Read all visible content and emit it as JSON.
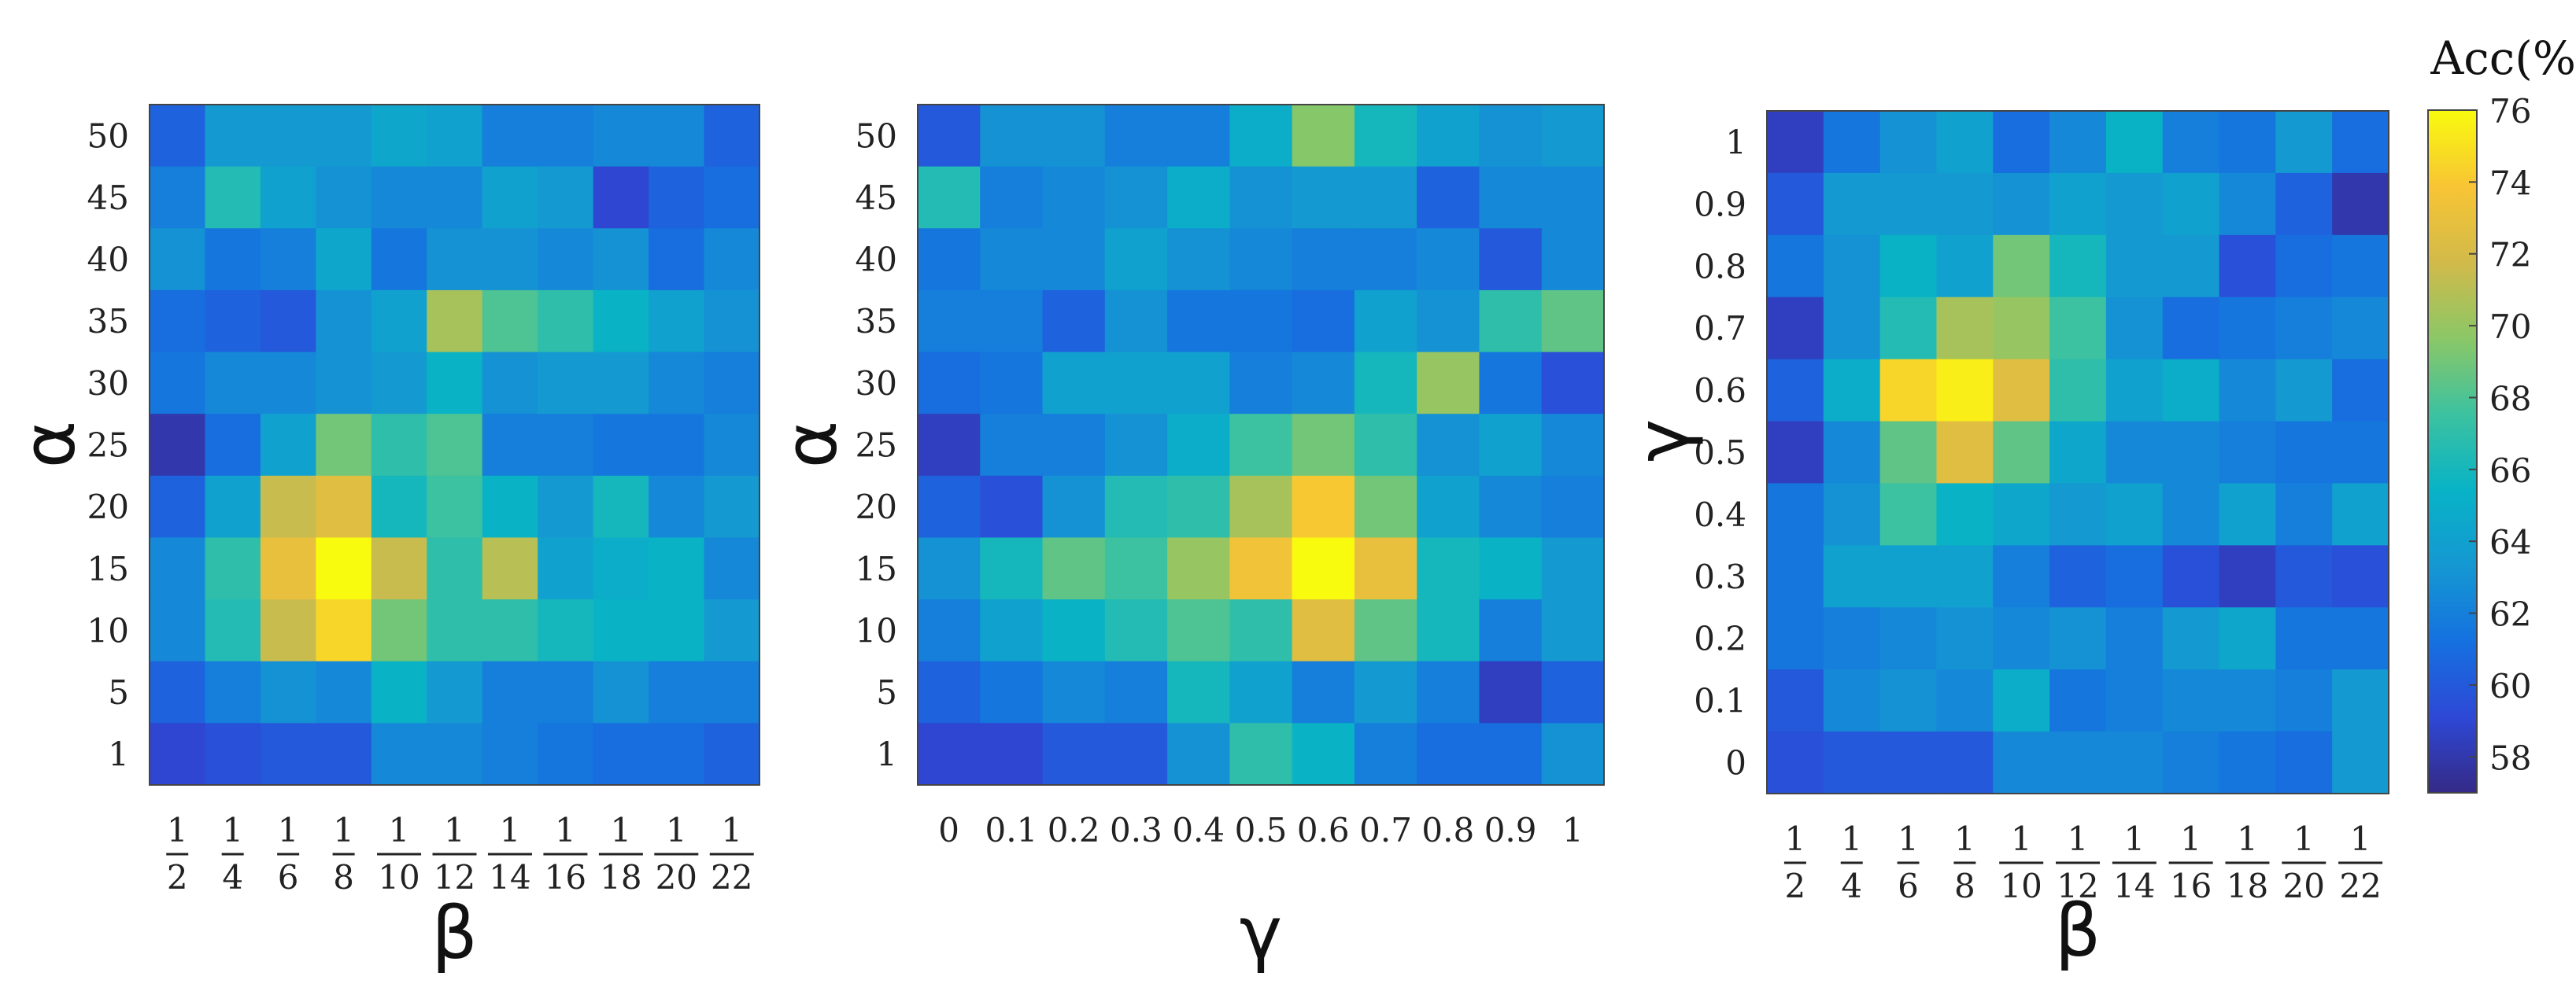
{
  "colorbar": {
    "title": "Acc(%)",
    "min": 57,
    "max": 76,
    "ticks": [
      "58",
      "60",
      "62",
      "64",
      "66",
      "68",
      "70",
      "72",
      "74",
      "76"
    ],
    "colormap": "parula",
    "stops": [
      "#352A87",
      "#2E48D6",
      "#1571E0",
      "#1598D2",
      "#08B3C6",
      "#3DC29F",
      "#8CC766",
      "#D2BA4A",
      "#F8C534",
      "#F9FB0E"
    ]
  },
  "chart_data": [
    {
      "type": "heatmap",
      "xlabel": "β",
      "ylabel": "α",
      "x_numerators": [
        "1",
        "1",
        "1",
        "1",
        "1",
        "1",
        "1",
        "1",
        "1",
        "1",
        "1"
      ],
      "x_denominators": [
        "2",
        "4",
        "6",
        "8",
        "10",
        "12",
        "14",
        "16",
        "18",
        "20",
        "22"
      ],
      "y_ticks": [
        "50",
        "45",
        "40",
        "35",
        "30",
        "25",
        "20",
        "15",
        "10",
        "5",
        "1"
      ],
      "values": [
        [
          60.5,
          63.5,
          63.5,
          63.5,
          64.5,
          64.0,
          62.0,
          62.0,
          62.5,
          62.5,
          60.5
        ],
        [
          62.0,
          66.5,
          64.0,
          63.0,
          62.5,
          62.5,
          64.0,
          63.5,
          59.0,
          60.5,
          61.0
        ],
        [
          63.0,
          61.5,
          62.0,
          64.5,
          61.5,
          63.0,
          63.0,
          62.5,
          63.0,
          61.0,
          62.5
        ],
        [
          61.0,
          60.5,
          60.0,
          63.0,
          64.0,
          70.5,
          68.0,
          67.0,
          65.5,
          64.0,
          63.0
        ],
        [
          61.5,
          62.5,
          62.5,
          63.0,
          63.5,
          65.5,
          63.0,
          63.5,
          63.5,
          62.5,
          62.0
        ],
        [
          58.0,
          61.0,
          64.0,
          69.0,
          67.0,
          68.0,
          62.0,
          62.0,
          61.5,
          61.5,
          62.5
        ],
        [
          60.5,
          64.0,
          71.5,
          72.5,
          66.0,
          67.5,
          65.5,
          63.5,
          66.0,
          62.5,
          63.5
        ],
        [
          62.5,
          67.0,
          73.0,
          76.0,
          71.5,
          67.0,
          71.0,
          64.0,
          65.0,
          65.5,
          62.5
        ],
        [
          62.5,
          66.5,
          71.5,
          74.5,
          69.0,
          67.0,
          67.0,
          66.0,
          65.5,
          65.5,
          63.5
        ],
        [
          60.5,
          62.0,
          63.0,
          62.5,
          65.5,
          63.5,
          62.0,
          62.0,
          63.0,
          62.0,
          62.0
        ],
        [
          59.0,
          59.5,
          60.0,
          60.0,
          62.5,
          62.5,
          62.0,
          61.5,
          61.0,
          61.0,
          60.5
        ]
      ]
    },
    {
      "type": "heatmap",
      "xlabel": "γ",
      "ylabel": "α",
      "x_ticks": [
        "0",
        "0.1",
        "0.2",
        "0.3",
        "0.4",
        "0.5",
        "0.6",
        "0.7",
        "0.8",
        "0.9",
        "1"
      ],
      "y_ticks": [
        "50",
        "45",
        "40",
        "35",
        "30",
        "25",
        "20",
        "15",
        "10",
        "5",
        "1"
      ],
      "values": [
        [
          60.0,
          63.0,
          63.0,
          62.0,
          62.0,
          65.0,
          69.5,
          66.0,
          64.0,
          63.0,
          63.5
        ],
        [
          66.5,
          62.0,
          62.5,
          63.0,
          65.0,
          63.0,
          63.5,
          63.5,
          60.5,
          62.5,
          62.5
        ],
        [
          61.5,
          62.5,
          62.5,
          64.0,
          63.0,
          62.5,
          62.0,
          62.0,
          62.5,
          60.0,
          62.5
        ],
        [
          62.0,
          62.0,
          60.5,
          63.0,
          61.5,
          61.5,
          61.0,
          64.0,
          63.0,
          67.0,
          68.5
        ],
        [
          61.0,
          61.5,
          64.0,
          64.0,
          64.0,
          62.0,
          62.5,
          66.0,
          70.0,
          61.5,
          59.5
        ],
        [
          58.5,
          62.0,
          62.0,
          63.0,
          65.0,
          67.5,
          69.0,
          67.0,
          63.0,
          64.0,
          62.5
        ],
        [
          60.5,
          59.5,
          63.0,
          66.5,
          67.0,
          70.5,
          74.0,
          69.0,
          64.0,
          62.5,
          62.0
        ],
        [
          63.0,
          66.0,
          68.5,
          67.5,
          70.0,
          73.5,
          76.0,
          73.0,
          66.0,
          65.5,
          63.5
        ],
        [
          62.0,
          64.0,
          65.5,
          66.5,
          68.0,
          67.0,
          72.5,
          68.5,
          66.0,
          62.0,
          63.5
        ],
        [
          60.5,
          61.5,
          62.5,
          62.0,
          66.0,
          64.0,
          62.0,
          63.5,
          62.0,
          58.5,
          60.5
        ],
        [
          59.0,
          59.0,
          60.0,
          60.0,
          63.0,
          67.0,
          65.5,
          62.0,
          61.0,
          61.0,
          63.0
        ]
      ]
    },
    {
      "type": "heatmap",
      "xlabel": "β",
      "ylabel": "γ",
      "x_numerators": [
        "1",
        "1",
        "1",
        "1",
        "1",
        "1",
        "1",
        "1",
        "1",
        "1",
        "1"
      ],
      "x_denominators": [
        "2",
        "4",
        "6",
        "8",
        "10",
        "12",
        "14",
        "16",
        "18",
        "20",
        "22"
      ],
      "y_ticks": [
        "1",
        "0.9",
        "0.8",
        "0.7",
        "0.6",
        "0.5",
        "0.4",
        "0.3",
        "0.2",
        "0.1",
        "0"
      ],
      "values": [
        [
          58.5,
          61.5,
          63.0,
          64.0,
          61.0,
          62.5,
          65.5,
          62.0,
          61.5,
          63.5,
          61.0
        ],
        [
          60.0,
          63.5,
          63.5,
          63.5,
          63.0,
          64.0,
          63.5,
          64.0,
          62.5,
          60.5,
          58.0
        ],
        [
          61.5,
          63.0,
          65.5,
          64.0,
          69.0,
          66.0,
          63.5,
          63.5,
          59.5,
          61.0,
          61.5
        ],
        [
          58.5,
          63.0,
          66.5,
          70.5,
          70.0,
          67.5,
          63.0,
          61.0,
          61.5,
          62.0,
          62.5
        ],
        [
          60.5,
          65.0,
          74.5,
          75.5,
          72.5,
          67.0,
          64.0,
          65.0,
          62.5,
          63.5,
          61.0
        ],
        [
          58.5,
          62.5,
          68.5,
          72.5,
          68.5,
          64.5,
          62.5,
          62.5,
          62.0,
          61.5,
          61.5
        ],
        [
          61.5,
          63.0,
          67.5,
          65.5,
          64.5,
          63.5,
          64.0,
          62.5,
          64.0,
          62.0,
          64.0
        ],
        [
          61.5,
          64.0,
          64.0,
          64.0,
          62.0,
          60.5,
          61.0,
          59.5,
          58.5,
          60.0,
          59.5
        ],
        [
          61.5,
          62.0,
          62.5,
          63.0,
          62.5,
          63.0,
          62.0,
          63.5,
          64.5,
          61.5,
          61.5
        ],
        [
          60.0,
          62.5,
          63.0,
          62.5,
          65.0,
          61.5,
          62.0,
          62.5,
          62.5,
          62.0,
          63.5
        ],
        [
          59.5,
          60.0,
          60.0,
          60.0,
          62.5,
          62.5,
          62.5,
          62.0,
          61.5,
          61.0,
          63.5
        ]
      ]
    }
  ]
}
